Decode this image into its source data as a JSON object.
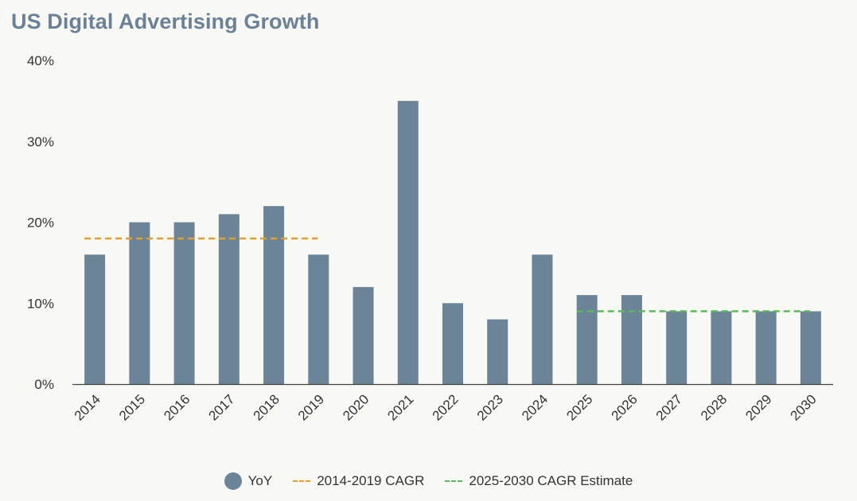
{
  "chart_data": {
    "type": "bar",
    "title": "US Digital Advertising Growth",
    "categories": [
      "2014",
      "2015",
      "2016",
      "2017",
      "2018",
      "2019",
      "2020",
      "2021",
      "2022",
      "2023",
      "2024",
      "2025",
      "2026",
      "2027",
      "2028",
      "2029",
      "2030"
    ],
    "series": [
      {
        "name": "YoY",
        "values": [
          16,
          20,
          20,
          21,
          22,
          16,
          12,
          35,
          10,
          8,
          16,
          11,
          11,
          9,
          9,
          9,
          9
        ],
        "color": "#6b8497"
      }
    ],
    "reference_lines": [
      {
        "name": "2014-2019 CAGR",
        "value": 18,
        "from": "2014",
        "to": "2019",
        "color": "#e0a030",
        "style": "dashed"
      },
      {
        "name": "2025-2030 CAGR Estimate",
        "value": 9,
        "from": "2025",
        "to": "2030",
        "color": "#5cb85c",
        "style": "dashed"
      }
    ],
    "ylim": [
      0,
      40
    ],
    "yticks": [
      0,
      10,
      20,
      30,
      40
    ],
    "ytick_labels": [
      "0%",
      "10%",
      "20%",
      "30%",
      "40%"
    ],
    "xlabel": "",
    "ylabel": "",
    "grid": false,
    "legend_position": "bottom-center"
  }
}
